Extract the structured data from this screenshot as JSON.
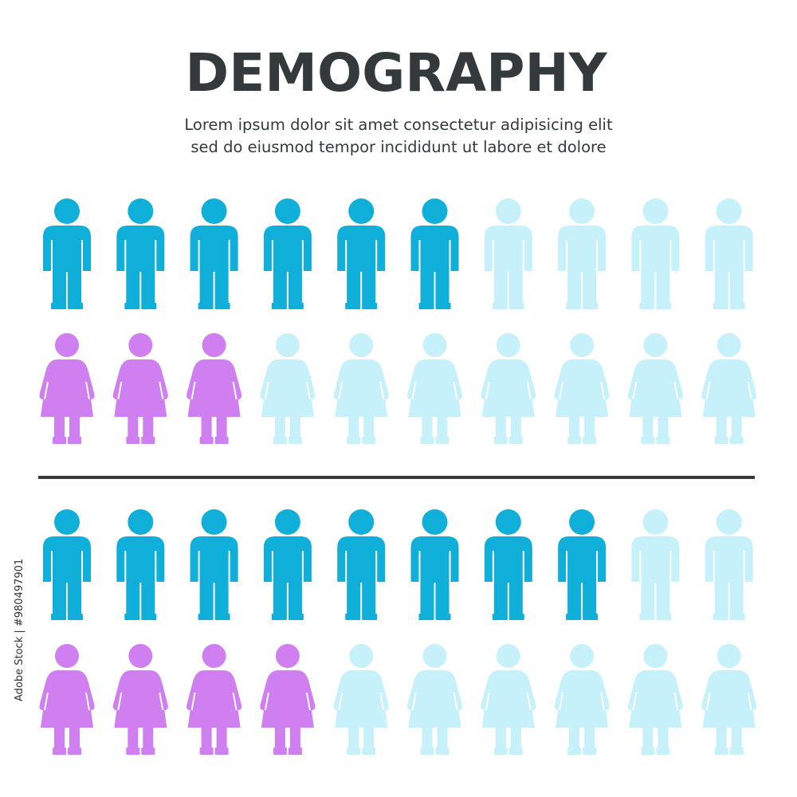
{
  "header": {
    "title": "DEMOGRAPHY",
    "subtitle": [
      "Lorem ipsum dolor sit amet consectetur adipisicing elit",
      "sed do eiusmod tempor incididunt ut labore et dolore"
    ]
  },
  "watermark": "Adobe Stock | #980497901",
  "faded_color": "#c6f1fa",
  "groups": [
    {
      "rows": [
        {
          "figure": "man",
          "filled": 6,
          "total": 10,
          "color": "#0fafd9"
        },
        {
          "figure": "woman",
          "filled": 3,
          "total": 10,
          "color": "#d07ff0"
        }
      ]
    },
    {
      "rows": [
        {
          "figure": "man",
          "filled": 8,
          "total": 10,
          "color": "#0fafd9"
        },
        {
          "figure": "woman",
          "filled": 4,
          "total": 10,
          "color": "#d07ff0"
        }
      ]
    }
  ]
}
